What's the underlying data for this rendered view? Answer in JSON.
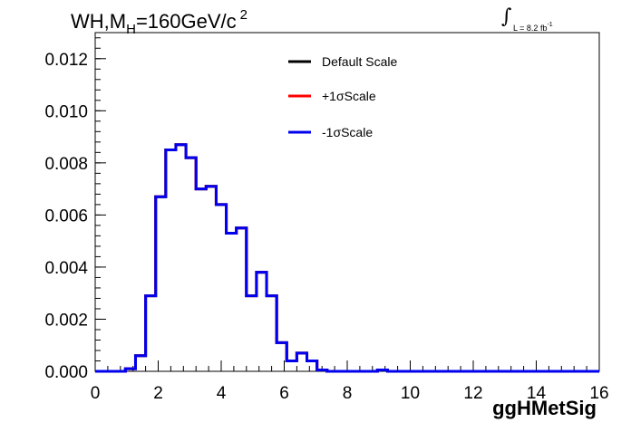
{
  "header": {
    "title_main": "WH,M",
    "title_sub": "H",
    "title_rest": "=160GeV/c",
    "title_sup": "2",
    "lumi_text": "L = 8.2 fb",
    "lumi_exp": "-1"
  },
  "chart_data": {
    "type": "line",
    "style": "step-histogram",
    "xlabel": "ggHMetSig",
    "ylabel": "",
    "xlim": [
      0,
      16
    ],
    "ylim": [
      0,
      0.013
    ],
    "xticks": [
      "0",
      "2",
      "4",
      "6",
      "8",
      "10",
      "12",
      "14",
      "16"
    ],
    "yticks": [
      "0.000",
      "0.002",
      "0.004",
      "0.006",
      "0.008",
      "0.010",
      "0.012"
    ],
    "bin_width": 0.32,
    "x_start": 0,
    "legend_position": "top-center",
    "series": [
      {
        "name": "Default Scale",
        "color": "#000000",
        "values": [
          0,
          0,
          0,
          0.0001,
          0.0006,
          0.0029,
          0.0067,
          0.0085,
          0.0087,
          0.0082,
          0.007,
          0.0071,
          0.0064,
          0.0053,
          0.0055,
          0.0029,
          0.0038,
          0.0029,
          0.0011,
          0.0004,
          0.0007,
          0.0004,
          5e-05,
          0,
          0,
          0,
          0,
          0,
          5e-05,
          0,
          0,
          0,
          0,
          0,
          0,
          0,
          0,
          0,
          0,
          0,
          0,
          0,
          0,
          0,
          0,
          0,
          0,
          0,
          0,
          0
        ]
      },
      {
        "name": "+1σScale",
        "color": "#ff0000",
        "values": [
          0,
          0,
          0,
          0.0001,
          0.0006,
          0.0029,
          0.0067,
          0.0085,
          0.0087,
          0.0082,
          0.007,
          0.0071,
          0.0064,
          0.0053,
          0.0055,
          0.0029,
          0.0038,
          0.0029,
          0.0011,
          0.0004,
          0.0007,
          0.0004,
          5e-05,
          0,
          0,
          0,
          0,
          0,
          5e-05,
          0,
          0,
          0,
          0,
          0,
          0,
          0,
          0,
          0,
          0,
          0,
          0,
          0,
          0,
          0,
          0,
          0,
          0,
          0,
          0,
          0
        ]
      },
      {
        "name": "-1σScale",
        "color": "#0000ee",
        "values": [
          0,
          0,
          0,
          0.0001,
          0.0006,
          0.0029,
          0.0067,
          0.0085,
          0.0087,
          0.0082,
          0.007,
          0.0071,
          0.0064,
          0.0053,
          0.0055,
          0.0029,
          0.0038,
          0.0029,
          0.0011,
          0.0004,
          0.0007,
          0.0004,
          5e-05,
          0,
          0,
          0,
          0,
          0,
          5e-05,
          0,
          0,
          0,
          0,
          0,
          0,
          0,
          0,
          0,
          0,
          0,
          0,
          0,
          0,
          0,
          0,
          0,
          0,
          0,
          0,
          0
        ]
      }
    ]
  }
}
